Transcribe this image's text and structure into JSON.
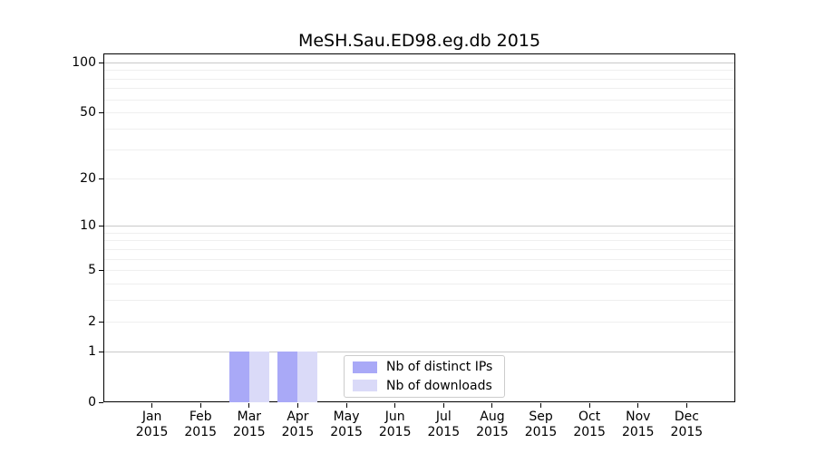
{
  "chart_data": {
    "type": "bar",
    "title": "MeSH.Sau.ED98.eg.db 2015",
    "xlabel": "",
    "ylabel": "",
    "x_tick_year": "2015",
    "categories": [
      "Jan",
      "Feb",
      "Mar",
      "Apr",
      "May",
      "Jun",
      "Jul",
      "Aug",
      "Sep",
      "Oct",
      "Nov",
      "Dec"
    ],
    "series": [
      {
        "name": "Nb of distinct IPs",
        "color": "#a9a9f7",
        "values": [
          0,
          0,
          1,
          1,
          0,
          0,
          0,
          0,
          0,
          0,
          0,
          0
        ]
      },
      {
        "name": "Nb of downloads",
        "color": "#dadaf8",
        "values": [
          0,
          0,
          1,
          1,
          0,
          0,
          0,
          0,
          0,
          0,
          0,
          0
        ]
      }
    ],
    "y_scale": "log10(1+y)",
    "ylim": [
      0,
      113
    ],
    "y_ticks": [
      0,
      1,
      2,
      5,
      10,
      20,
      50,
      100
    ],
    "gridlines": {
      "major": [
        1,
        10,
        100
      ],
      "minor": [
        2,
        3,
        4,
        5,
        6,
        7,
        8,
        9,
        20,
        30,
        40,
        50,
        60,
        70,
        80,
        90
      ],
      "major_color": "#c9c9c9",
      "minor_color": "#efefef"
    },
    "legend": {
      "position": "bottom-center",
      "entries": [
        "Nb of distinct IPs",
        "Nb of downloads"
      ]
    }
  }
}
